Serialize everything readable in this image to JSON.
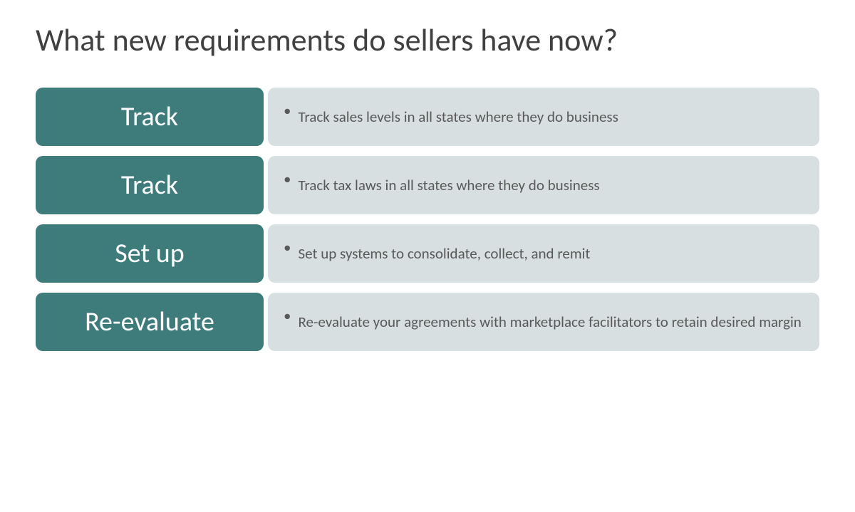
{
  "title": "What new requirements do sellers have now?",
  "styling": {
    "title_color": "#404040",
    "title_fontsize": 44,
    "label_bg": "#3e7c7c",
    "label_text_color": "#ffffff",
    "label_fontsize": 38,
    "desc_bg": "#d7dfe0",
    "desc_text_color": "#595959",
    "desc_fontsize": 21,
    "border_radius": 10,
    "row_gap": 14,
    "background_color": "#ffffff"
  },
  "rows": [
    {
      "label": "Track",
      "description": "Track sales levels in all states where they do business"
    },
    {
      "label": "Track",
      "description": "Track tax laws in all states where they do business"
    },
    {
      "label": "Set up",
      "description": "Set up systems to consolidate, collect, and remit"
    },
    {
      "label": "Re-evaluate",
      "description": "Re-evaluate your agreements with marketplace facilitators to retain desired margin"
    }
  ]
}
